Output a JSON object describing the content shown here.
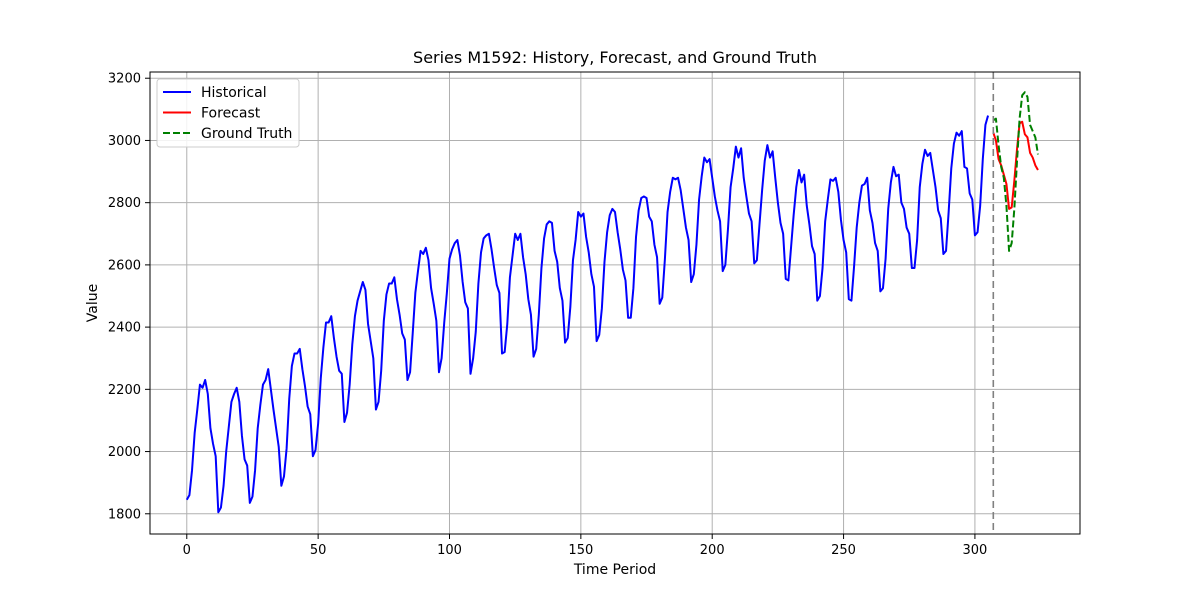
{
  "chart_data": {
    "type": "line",
    "title": "Series M1592: History, Forecast, and Ground Truth",
    "xlabel": "Time Period",
    "ylabel": "Value",
    "xlim": [
      -14,
      340
    ],
    "ylim": [
      1735,
      3220
    ],
    "xticks": [
      0,
      50,
      100,
      150,
      200,
      250,
      300
    ],
    "yticks": [
      1800,
      2000,
      2200,
      2400,
      2600,
      2800,
      3000,
      3200
    ],
    "grid": true,
    "legend_position": "top-left",
    "forecast_start_line": 307,
    "series": [
      {
        "name": "Historical",
        "color": "#0000ff",
        "style": "solid",
        "x_start": 0,
        "values": [
          1845,
          1860,
          1940,
          2060,
          2135,
          2215,
          2205,
          2230,
          2185,
          2075,
          2025,
          1985,
          1805,
          1820,
          1890,
          2000,
          2080,
          2160,
          2185,
          2205,
          2160,
          2050,
          1975,
          1955,
          1835,
          1855,
          1940,
          2075,
          2150,
          2215,
          2230,
          2265,
          2200,
          2135,
          2075,
          2015,
          1890,
          1920,
          2010,
          2170,
          2275,
          2315,
          2315,
          2330,
          2265,
          2210,
          2145,
          2120,
          1985,
          2005,
          2090,
          2235,
          2335,
          2415,
          2415,
          2435,
          2365,
          2305,
          2260,
          2250,
          2095,
          2125,
          2215,
          2345,
          2435,
          2485,
          2515,
          2545,
          2520,
          2410,
          2355,
          2300,
          2135,
          2160,
          2260,
          2420,
          2505,
          2540,
          2540,
          2560,
          2490,
          2440,
          2380,
          2360,
          2230,
          2255,
          2380,
          2510,
          2580,
          2645,
          2635,
          2655,
          2615,
          2525,
          2475,
          2420,
          2255,
          2300,
          2415,
          2510,
          2620,
          2650,
          2670,
          2680,
          2630,
          2545,
          2480,
          2460,
          2250,
          2300,
          2385,
          2540,
          2640,
          2685,
          2695,
          2700,
          2650,
          2590,
          2535,
          2510,
          2315,
          2320,
          2410,
          2560,
          2630,
          2700,
          2680,
          2700,
          2625,
          2570,
          2490,
          2440,
          2305,
          2330,
          2440,
          2590,
          2685,
          2730,
          2740,
          2735,
          2645,
          2610,
          2525,
          2485,
          2350,
          2365,
          2465,
          2615,
          2680,
          2770,
          2755,
          2765,
          2690,
          2640,
          2570,
          2530,
          2355,
          2375,
          2460,
          2610,
          2705,
          2760,
          2780,
          2770,
          2705,
          2650,
          2585,
          2550,
          2430,
          2430,
          2525,
          2690,
          2775,
          2815,
          2820,
          2815,
          2755,
          2740,
          2665,
          2625,
          2475,
          2495,
          2620,
          2770,
          2835,
          2880,
          2875,
          2880,
          2840,
          2780,
          2720,
          2680,
          2545,
          2570,
          2665,
          2810,
          2885,
          2945,
          2930,
          2940,
          2880,
          2820,
          2775,
          2740,
          2580,
          2600,
          2715,
          2850,
          2910,
          2980,
          2945,
          2975,
          2880,
          2820,
          2765,
          2740,
          2605,
          2615,
          2730,
          2840,
          2935,
          2985,
          2945,
          2965,
          2880,
          2800,
          2735,
          2700,
          2555,
          2550,
          2655,
          2760,
          2850,
          2905,
          2865,
          2890,
          2790,
          2730,
          2660,
          2635,
          2485,
          2500,
          2590,
          2740,
          2810,
          2875,
          2870,
          2880,
          2835,
          2745,
          2680,
          2640,
          2490,
          2485,
          2595,
          2720,
          2800,
          2855,
          2860,
          2880,
          2775,
          2735,
          2670,
          2645,
          2515,
          2525,
          2620,
          2780,
          2865,
          2915,
          2885,
          2890,
          2800,
          2780,
          2720,
          2700,
          2590,
          2590,
          2680,
          2850,
          2925,
          2970,
          2950,
          2960,
          2905,
          2850,
          2775,
          2750,
          2635,
          2645,
          2770,
          2910,
          2990,
          3025,
          3015,
          3030,
          2915,
          2910,
          2830,
          2810,
          2695,
          2705,
          2790,
          2940,
          3050,
          3080
        ]
      },
      {
        "name": "Forecast",
        "color": "#ff0000",
        "style": "solid",
        "x_start": 307,
        "values": [
          3025,
          3000,
          2940,
          2920,
          2890,
          2860,
          2780,
          2785,
          2870,
          2970,
          3055,
          3060,
          3020,
          3010,
          2960,
          2945,
          2920,
          2905
        ]
      },
      {
        "name": "Ground Truth",
        "color": "#008000",
        "style": "dashed",
        "x_start": 307,
        "values": [
          3065,
          3070,
          2985,
          2915,
          2880,
          2790,
          2645,
          2670,
          2780,
          2930,
          3070,
          3145,
          3155,
          3140,
          3050,
          3030,
          3010,
          2955
        ]
      }
    ]
  }
}
